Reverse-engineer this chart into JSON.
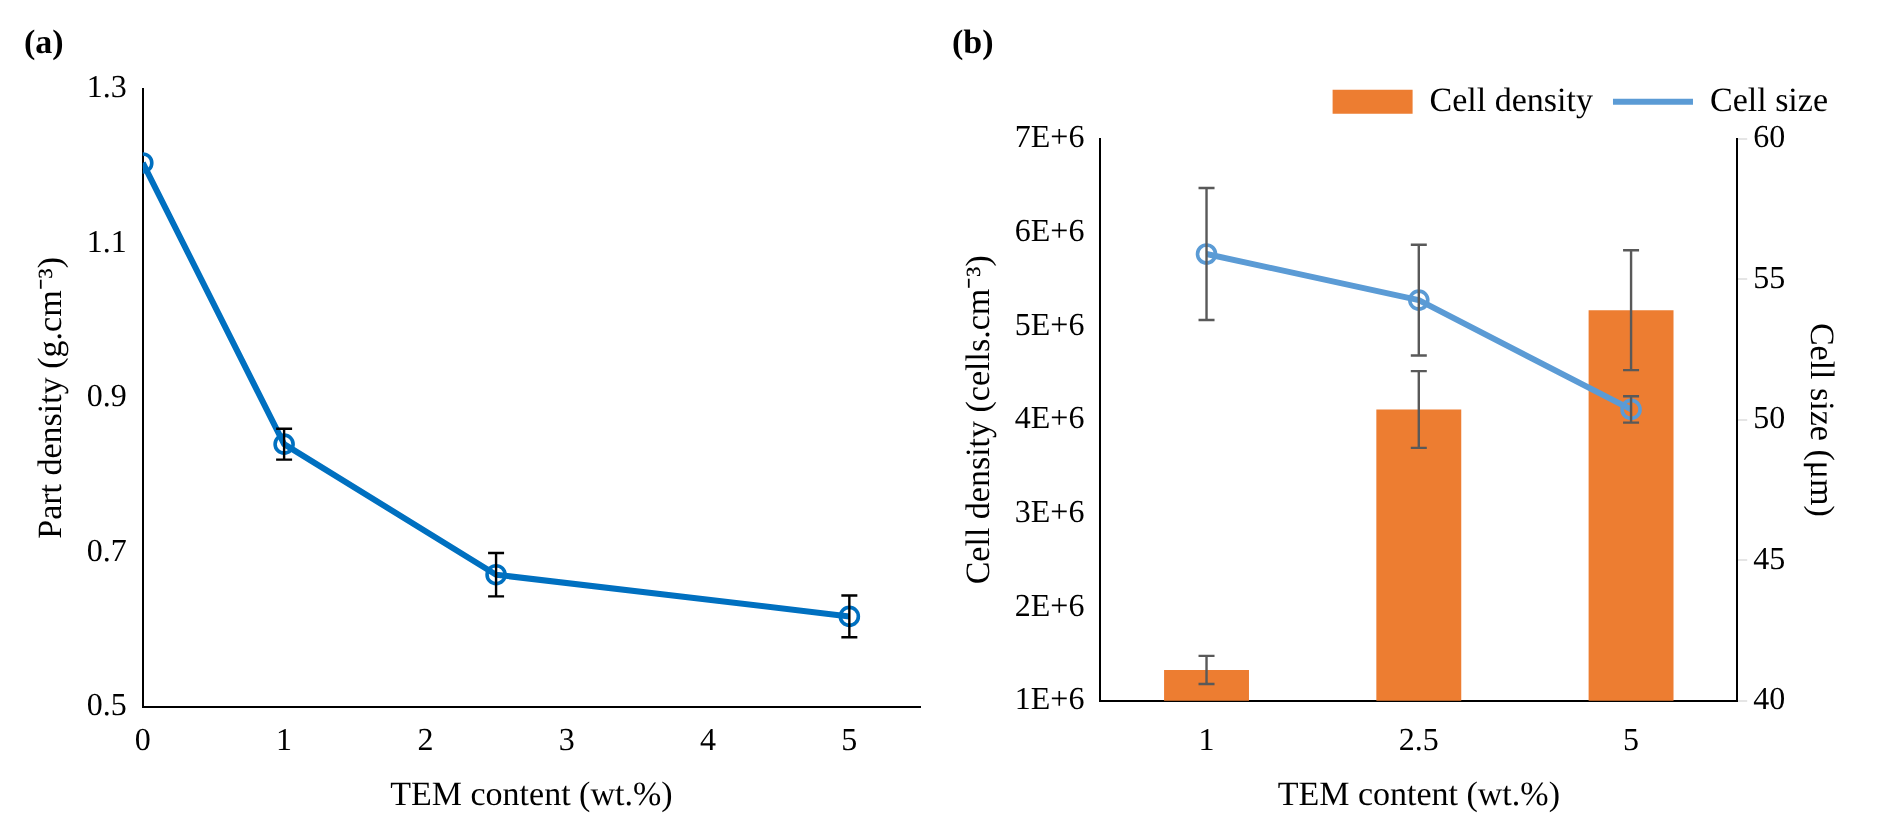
{
  "chart_data": [
    {
      "type": "line",
      "title": "(a)",
      "xlabel": "TEM content (wt.%)",
      "ylabel": "Part density (g.cm⁻³)",
      "x": [
        0,
        1,
        2.5,
        5
      ],
      "xlim": [
        0,
        5.5
      ],
      "xticks": [
        0,
        1,
        2,
        3,
        4,
        5
      ],
      "ylim": [
        0.5,
        1.3
      ],
      "yticks": [
        0.5,
        0.7,
        0.9,
        1.1,
        1.3
      ],
      "grid": false,
      "legend": false,
      "marker": "circle",
      "line_style": "solid",
      "series": [
        {
          "color": "#0070c0",
          "values": [
            1.204,
            0.84,
            0.671,
            0.617
          ],
          "errors": [
            null,
            0.02,
            0.028,
            0.027
          ]
        }
      ]
    },
    {
      "type": "bar",
      "title": "(b)",
      "xlabel": "TEM content (wt.%)",
      "ylabel": "Cell density (cells.cm⁻³)",
      "y2label": "Cell size (μm)",
      "categories": [
        "1",
        "2.5",
        "5"
      ],
      "ylim": [
        1000000,
        7000000
      ],
      "yticks": [
        {
          "value": 1000000,
          "label": "1E+6"
        },
        {
          "value": 2000000,
          "label": "2E+6"
        },
        {
          "value": 3000000,
          "label": "3E+6"
        },
        {
          "value": 4000000,
          "label": "4E+6"
        },
        {
          "value": 5000000,
          "label": "5E+6"
        },
        {
          "value": 6000000,
          "label": "6E+6"
        },
        {
          "value": 7000000,
          "label": "7E+6"
        }
      ],
      "y2lim": [
        40,
        60
      ],
      "y2ticks": [
        40,
        45,
        50,
        55,
        60
      ],
      "grid": false,
      "legend": "top",
      "marker": "circle",
      "series": [
        {
          "name": "Cell density",
          "type": "bar",
          "color": "#ed7d31",
          "values": [
            1330000,
            4110000,
            5170000
          ],
          "errors": [
            150000,
            410000,
            640000
          ]
        },
        {
          "name": "Cell size",
          "type": "line",
          "axis": "y2",
          "color": "#5b9bd5",
          "values": [
            55.9,
            54.26,
            50.37
          ],
          "errors": [
            2.35,
            1.97,
            0.47
          ]
        }
      ]
    }
  ]
}
